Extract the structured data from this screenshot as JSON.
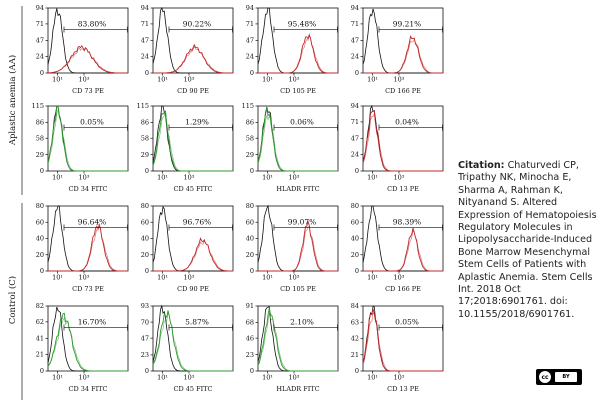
{
  "figure": {
    "group_labels": [
      "Aplastic anemia (AA)",
      "Control (C)"
    ],
    "line_colors": {
      "control": "#111111",
      "pe": "#c0282a",
      "fitc": "#2e9a2e"
    }
  },
  "chart_data": [
    {
      "type": "histogram",
      "group": "Aplastic anemia (AA)",
      "xlabel": "CD 73 PE",
      "yticks": [
        0,
        24,
        47,
        71,
        94
      ],
      "ylim": [
        0,
        94
      ],
      "xticks": [
        "10¹",
        "10³"
      ],
      "gate_label": "83.80%",
      "positive_percent": 83.8,
      "stain": "pe",
      "control_peak": {
        "x": 0.12,
        "h": 0.98,
        "w": 0.06
      },
      "sample_peak": {
        "x": 0.42,
        "h": 0.4,
        "w": 0.13
      }
    },
    {
      "type": "histogram",
      "group": "Aplastic anemia (AA)",
      "xlabel": "CD 90 PE",
      "yticks": [
        0,
        24,
        47,
        71,
        94
      ],
      "ylim": [
        0,
        94
      ],
      "xticks": [
        "10¹",
        "10³"
      ],
      "gate_label": "90.22%",
      "positive_percent": 90.22,
      "stain": "pe",
      "control_peak": {
        "x": 0.12,
        "h": 0.98,
        "w": 0.06
      },
      "sample_peak": {
        "x": 0.52,
        "h": 0.4,
        "w": 0.11
      }
    },
    {
      "type": "histogram",
      "group": "Aplastic anemia (AA)",
      "xlabel": "CD 105 PE",
      "yticks": [
        0,
        24,
        47,
        71,
        94
      ],
      "ylim": [
        0,
        94
      ],
      "xticks": [
        "10¹",
        "10³"
      ],
      "gate_label": "95.48%",
      "positive_percent": 95.48,
      "stain": "pe",
      "control_peak": {
        "x": 0.12,
        "h": 0.98,
        "w": 0.06
      },
      "sample_peak": {
        "x": 0.62,
        "h": 0.58,
        "w": 0.07
      }
    },
    {
      "type": "histogram",
      "group": "Aplastic anemia (AA)",
      "xlabel": "CD 166 PE",
      "yticks": [
        0,
        24,
        47,
        71,
        94
      ],
      "ylim": [
        0,
        94
      ],
      "xticks": [
        "10¹",
        "10³"
      ],
      "gate_label": "99.21%",
      "positive_percent": 99.21,
      "stain": "pe",
      "control_peak": {
        "x": 0.12,
        "h": 0.98,
        "w": 0.06
      },
      "sample_peak": {
        "x": 0.62,
        "h": 0.55,
        "w": 0.07
      }
    },
    {
      "type": "histogram",
      "group": "Aplastic anemia (AA)",
      "xlabel": "CD 34 FITC",
      "yticks": [
        0,
        29,
        58,
        86,
        115
      ],
      "ylim": [
        0,
        115
      ],
      "xticks": [
        "10¹",
        "10³"
      ],
      "gate_label": "0.05%",
      "positive_percent": 0.05,
      "stain": "fitc",
      "control_peak": {
        "x": 0.12,
        "h": 0.98,
        "w": 0.06
      },
      "sample_peak": {
        "x": 0.12,
        "h": 0.95,
        "w": 0.06
      }
    },
    {
      "type": "histogram",
      "group": "Aplastic anemia (AA)",
      "xlabel": "CD 45 FITC",
      "yticks": [
        0,
        29,
        58,
        86,
        115
      ],
      "ylim": [
        0,
        115
      ],
      "xticks": [
        "10¹",
        "10³"
      ],
      "gate_label": "1.29%",
      "positive_percent": 1.29,
      "stain": "fitc",
      "control_peak": {
        "x": 0.12,
        "h": 0.98,
        "w": 0.06
      },
      "sample_peak": {
        "x": 0.13,
        "h": 0.92,
        "w": 0.06
      }
    },
    {
      "type": "histogram",
      "group": "Aplastic anemia (AA)",
      "xlabel": "HLADR FITC",
      "yticks": [
        0,
        29,
        58,
        86,
        115
      ],
      "ylim": [
        0,
        115
      ],
      "xticks": [
        "10¹",
        "10³"
      ],
      "gate_label": "0.06%",
      "positive_percent": 0.06,
      "stain": "fitc",
      "control_peak": {
        "x": 0.12,
        "h": 0.98,
        "w": 0.06
      },
      "sample_peak": {
        "x": 0.12,
        "h": 0.94,
        "w": 0.06
      }
    },
    {
      "type": "histogram",
      "group": "Aplastic anemia (AA)",
      "xlabel": "CD 13 PE",
      "yticks": [
        0,
        24,
        47,
        71,
        94
      ],
      "ylim": [
        0,
        94
      ],
      "xticks": [
        "10¹",
        "10³"
      ],
      "gate_label": "0.04%",
      "positive_percent": 0.04,
      "stain": "pe",
      "control_peak": {
        "x": 0.12,
        "h": 0.98,
        "w": 0.06
      },
      "sample_peak": {
        "x": 0.12,
        "h": 0.92,
        "w": 0.06
      }
    },
    {
      "type": "histogram",
      "group": "Control (C)",
      "xlabel": "CD 73 PE",
      "yticks": [
        0,
        20,
        40,
        60,
        80
      ],
      "ylim": [
        0,
        80
      ],
      "xticks": [
        "10¹",
        "10³"
      ],
      "gate_label": "96.64%",
      "positive_percent": 96.64,
      "stain": "pe",
      "control_peak": {
        "x": 0.12,
        "h": 0.98,
        "w": 0.06
      },
      "sample_peak": {
        "x": 0.62,
        "h": 0.7,
        "w": 0.07
      }
    },
    {
      "type": "histogram",
      "group": "Control (C)",
      "xlabel": "CD 90 PE",
      "yticks": [
        0,
        20,
        40,
        60,
        80
      ],
      "ylim": [
        0,
        80
      ],
      "xticks": [
        "10¹",
        "10³"
      ],
      "gate_label": "96.76%",
      "positive_percent": 96.76,
      "stain": "pe",
      "control_peak": {
        "x": 0.12,
        "h": 0.98,
        "w": 0.06
      },
      "sample_peak": {
        "x": 0.62,
        "h": 0.48,
        "w": 0.09
      }
    },
    {
      "type": "histogram",
      "group": "Control (C)",
      "xlabel": "CD 105 PE",
      "yticks": [
        0,
        20,
        40,
        60,
        80
      ],
      "ylim": [
        0,
        80
      ],
      "xticks": [
        "10¹",
        "10³"
      ],
      "gate_label": "99.07%",
      "positive_percent": 99.07,
      "stain": "pe",
      "control_peak": {
        "x": 0.12,
        "h": 0.98,
        "w": 0.06
      },
      "sample_peak": {
        "x": 0.62,
        "h": 0.72,
        "w": 0.06
      }
    },
    {
      "type": "histogram",
      "group": "Control (C)",
      "xlabel": "CD 166 PE",
      "yticks": [
        0,
        20,
        40,
        60,
        80
      ],
      "ylim": [
        0,
        80
      ],
      "xticks": [
        "10¹",
        "10³"
      ],
      "gate_label": "98.39%",
      "positive_percent": 98.39,
      "stain": "pe",
      "control_peak": {
        "x": 0.12,
        "h": 0.98,
        "w": 0.06
      },
      "sample_peak": {
        "x": 0.62,
        "h": 0.62,
        "w": 0.06
      }
    },
    {
      "type": "histogram",
      "group": "Control (C)",
      "xlabel": "CD 34 FITC",
      "yticks": [
        0,
        21,
        41,
        62,
        82
      ],
      "ylim": [
        0,
        82
      ],
      "xticks": [
        "10¹",
        "10³"
      ],
      "gate_label": "16.70%",
      "positive_percent": 16.7,
      "stain": "fitc",
      "control_peak": {
        "x": 0.12,
        "h": 0.98,
        "w": 0.06
      },
      "sample_peak": {
        "x": 0.2,
        "h": 0.85,
        "w": 0.09
      }
    },
    {
      "type": "histogram",
      "group": "Control (C)",
      "xlabel": "CD 45 FITC",
      "yticks": [
        0,
        23,
        47,
        70,
        93
      ],
      "ylim": [
        0,
        93
      ],
      "xticks": [
        "10¹",
        "10³"
      ],
      "gate_label": "5.87%",
      "positive_percent": 5.87,
      "stain": "fitc",
      "control_peak": {
        "x": 0.12,
        "h": 0.98,
        "w": 0.06
      },
      "sample_peak": {
        "x": 0.17,
        "h": 0.9,
        "w": 0.08
      }
    },
    {
      "type": "histogram",
      "group": "Control (C)",
      "xlabel": "HLADR FITC",
      "yticks": [
        0,
        23,
        46,
        68,
        91
      ],
      "ylim": [
        0,
        91
      ],
      "xticks": [
        "10¹",
        "10³"
      ],
      "gate_label": "2.10%",
      "positive_percent": 2.1,
      "stain": "fitc",
      "control_peak": {
        "x": 0.12,
        "h": 0.98,
        "w": 0.06
      },
      "sample_peak": {
        "x": 0.15,
        "h": 0.9,
        "w": 0.07
      }
    },
    {
      "type": "histogram",
      "group": "Control (C)",
      "xlabel": "CD 13 PE",
      "yticks": [
        0,
        21,
        42,
        63,
        84
      ],
      "ylim": [
        0,
        84
      ],
      "xticks": [
        "10¹",
        "10³"
      ],
      "gate_label": "0.05%",
      "positive_percent": 0.05,
      "stain": "pe",
      "control_peak": {
        "x": 0.12,
        "h": 0.98,
        "w": 0.06
      },
      "sample_peak": {
        "x": 0.12,
        "h": 0.95,
        "w": 0.06
      }
    }
  ],
  "citation": {
    "label": "Citation:",
    "text": "Chaturvedi CP, Tripathy NK, Minocha E, Sharma A, Rahman K, Nityanand S. Altered Expression of Hematopoiesis Regulatory Molecules in Lipopolysaccharide-Induced Bone Marrow Mesenchymal Stem Cells of Patients with Aplastic Anemia. Stem Cells Int. 2018 Oct 17;2018:6901761. doi: 10.1155/2018/6901761."
  },
  "license_badge": {
    "icon": "creative-commons-by-icon",
    "left": "cc",
    "right": "BY"
  }
}
